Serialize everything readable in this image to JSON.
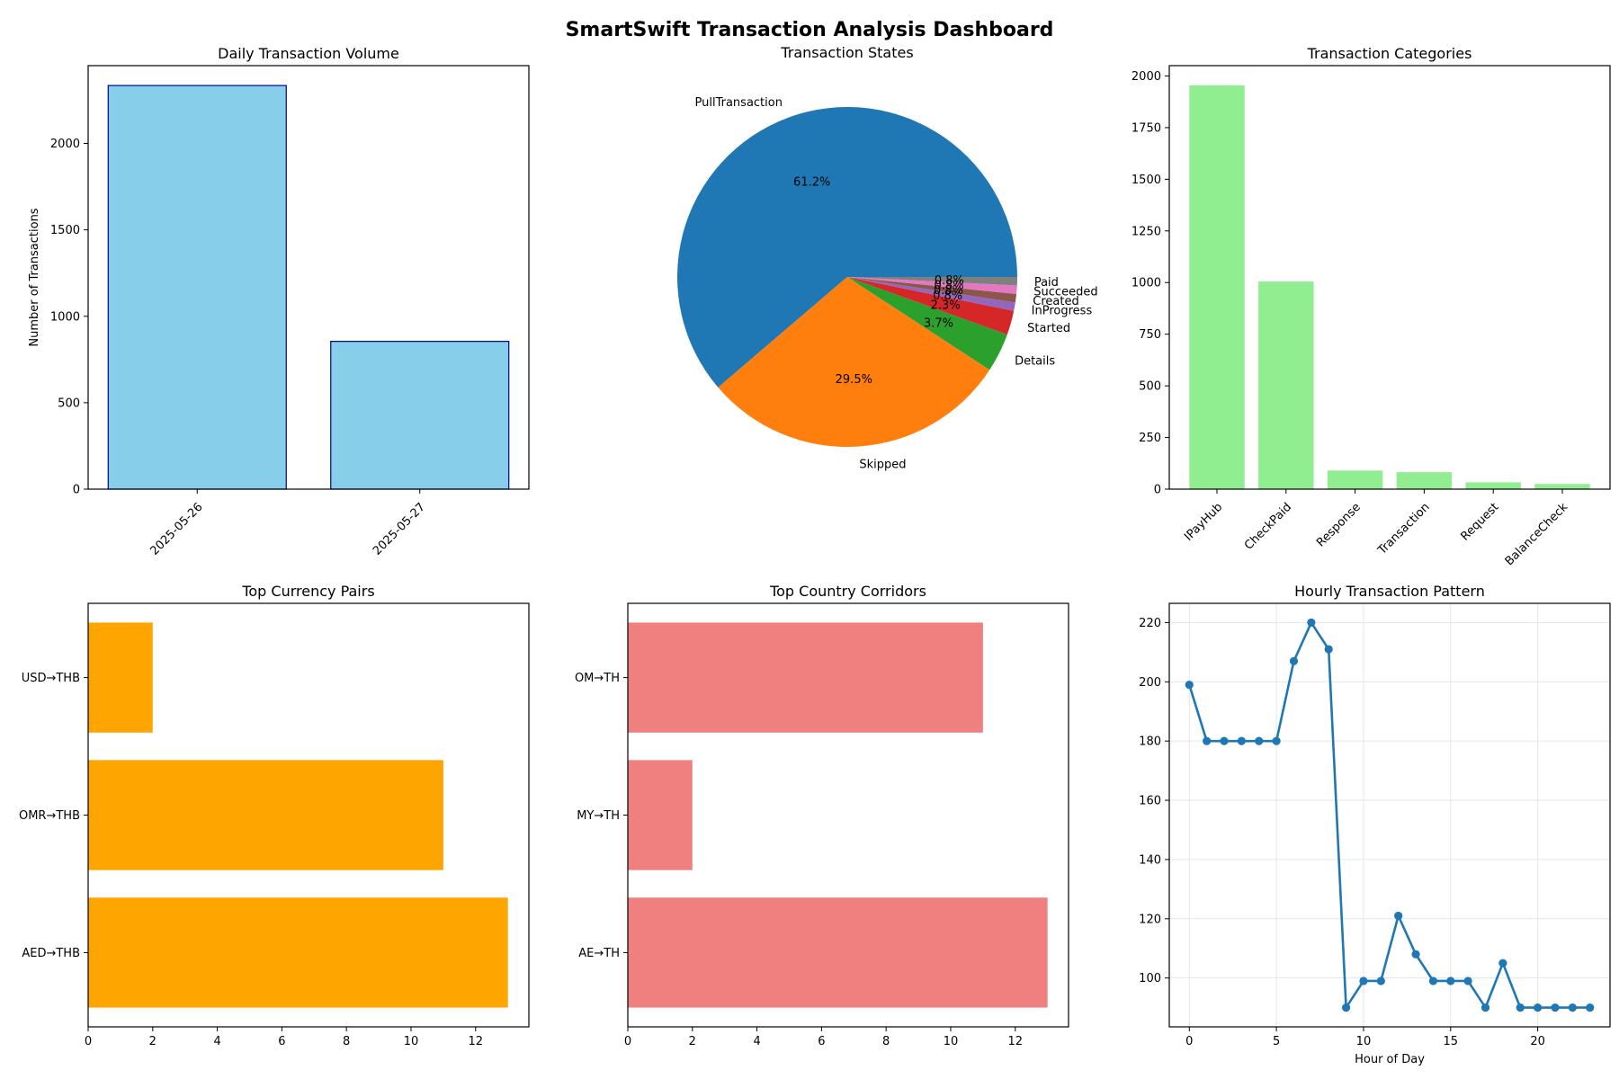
{
  "dashboard_title": "SmartSwift Transaction Analysis Dashboard",
  "chart_data": [
    {
      "id": "daily-volume",
      "type": "bar",
      "title": "Daily Transaction Volume",
      "xlabel": "",
      "ylabel": "Number of Transactions",
      "categories": [
        "2025-05-26",
        "2025-05-27"
      ],
      "values": [
        2335,
        855
      ],
      "ylim": [
        0,
        2450
      ],
      "yticks": [
        0,
        500,
        1000,
        1500,
        2000
      ],
      "bar_color": "#87CEEB",
      "edge_color": "#00008B"
    },
    {
      "id": "transaction-states",
      "type": "pie",
      "title": "Transaction States",
      "labels": [
        "PullTransaction",
        "Skipped",
        "Details",
        "Started",
        "InProgress",
        "Created",
        "Succeeded",
        "Paid"
      ],
      "values": [
        61.2,
        29.5,
        3.7,
        2.3,
        0.8,
        0.8,
        0.8,
        0.8
      ],
      "pct_labels": [
        "61.2%",
        "29.5%",
        "3.7%",
        "2.3%",
        "0.8%",
        "0.8%",
        "0.8%",
        "0.8%"
      ],
      "colors": [
        "#1f77b4",
        "#ff7f0e",
        "#2ca02c",
        "#d62728",
        "#9467bd",
        "#8c564b",
        "#e377c2",
        "#7f7f7f"
      ]
    },
    {
      "id": "transaction-categories",
      "type": "bar",
      "title": "Transaction Categories",
      "xlabel": "",
      "ylabel": "",
      "categories": [
        "IPayHub",
        "CheckPaid",
        "Response",
        "Transaction",
        "Request",
        "BalanceCheck"
      ],
      "values": [
        1955,
        1005,
        90,
        82,
        33,
        25
      ],
      "ylim": [
        0,
        2050
      ],
      "yticks": [
        0,
        250,
        500,
        750,
        1000,
        1250,
        1500,
        1750,
        2000
      ],
      "bar_color": "#90EE90"
    },
    {
      "id": "currency-pairs",
      "type": "barh",
      "title": "Top Currency Pairs",
      "categories": [
        "AED→THB",
        "OMR→THB",
        "USD→THB"
      ],
      "values": [
        13,
        11,
        2
      ],
      "xlim": [
        0,
        13.65
      ],
      "xticks": [
        0,
        2,
        4,
        6,
        8,
        10,
        12
      ],
      "bar_color": "#FFA500"
    },
    {
      "id": "country-corridors",
      "type": "barh",
      "title": "Top Country Corridors",
      "categories": [
        "AE→TH",
        "MY→TH",
        "OM→TH"
      ],
      "values": [
        13,
        2,
        11
      ],
      "xlim": [
        0,
        13.65
      ],
      "xticks": [
        0,
        2,
        4,
        6,
        8,
        10,
        12
      ],
      "bar_color": "#F08080"
    },
    {
      "id": "hourly-pattern",
      "type": "line",
      "title": "Hourly Transaction Pattern",
      "xlabel": "Hour of Day",
      "ylabel": "",
      "x": [
        0,
        1,
        2,
        3,
        4,
        5,
        6,
        7,
        8,
        9,
        10,
        11,
        12,
        13,
        14,
        15,
        16,
        17,
        18,
        19,
        20,
        21,
        22,
        23
      ],
      "y": [
        199,
        180,
        180,
        180,
        180,
        180,
        207,
        220,
        211,
        90,
        99,
        99,
        121,
        108,
        99,
        99,
        99,
        90,
        105,
        90,
        90,
        90,
        90,
        90
      ],
      "xlim": [
        -1.15,
        24.15
      ],
      "ylim": [
        83.5,
        226.5
      ],
      "xticks": [
        0,
        5,
        10,
        15,
        20
      ],
      "yticks": [
        100,
        120,
        140,
        160,
        180,
        200,
        220
      ],
      "grid": true,
      "line_color": "#1f77b4"
    }
  ]
}
